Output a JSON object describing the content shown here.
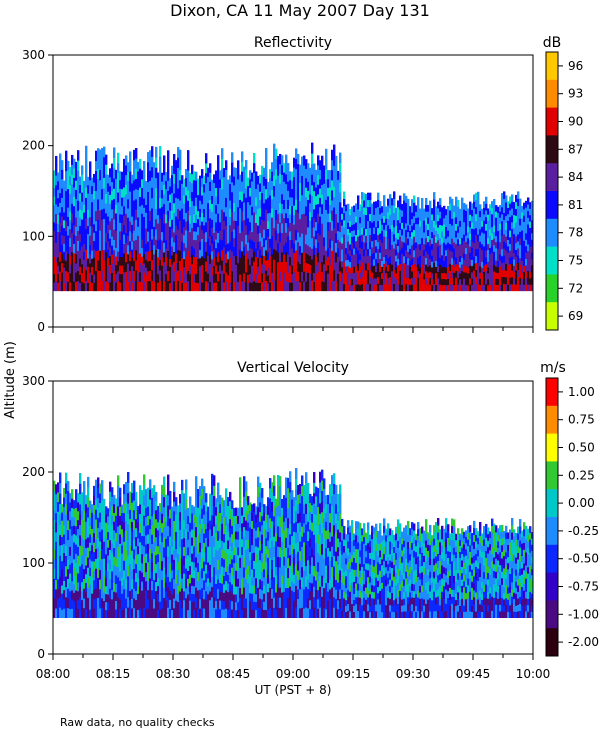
{
  "chart_data": [
    {
      "type": "heatmap",
      "title": "Reflectivity",
      "units": "dB",
      "ylim": [
        0,
        300
      ],
      "yticks": [
        0,
        100,
        200,
        300
      ],
      "colorbar": {
        "labels": [
          "96",
          "93",
          "90",
          "87",
          "84",
          "81",
          "78",
          "75",
          "72",
          "69"
        ],
        "values": [
          96,
          93,
          90,
          87,
          84,
          81,
          78,
          75,
          72,
          69
        ],
        "colors": [
          "#ffc800",
          "#ff8c00",
          "#e00000",
          "#2d0a14",
          "#5a1ea0",
          "#0a0aff",
          "#1e8cff",
          "#00e0c8",
          "#28d228",
          "#c8ff00"
        ]
      },
      "profile": {
        "base_altitude": 40,
        "description_levels_m": [
          120,
          180,
          200
        ]
      }
    },
    {
      "type": "heatmap",
      "title": "Vertical Velocity",
      "units": "m/s",
      "ylim": [
        0,
        300
      ],
      "yticks": [
        0,
        100,
        200,
        300
      ],
      "colorbar": {
        "labels": [
          "1.00",
          "0.75",
          "0.50",
          "0.25",
          "0.00",
          "-0.25",
          "-0.50",
          "-0.75",
          "-1.00",
          "-2.00"
        ],
        "values": [
          1.0,
          0.75,
          0.5,
          0.25,
          0.0,
          -0.25,
          -0.5,
          -0.75,
          -1.0,
          -2.0
        ],
        "colors": [
          "#ff0000",
          "#ff8c00",
          "#ffff00",
          "#32c832",
          "#00c8c8",
          "#1e8cff",
          "#0a28ff",
          "#3200c8",
          "#4b0a82",
          "#2d000f"
        ]
      },
      "profile": {
        "base_altitude": 40,
        "description_levels_m": [
          140,
          180,
          200
        ]
      }
    }
  ],
  "figure": {
    "title": "Dixon, CA 11 May 2007  Day 131",
    "ylabel": "Altitude (m)",
    "xlabel": "UT  (PST + 8)",
    "xlim_hours": [
      8.0,
      10.0
    ],
    "xtick_labels": [
      "08:00",
      "08:15",
      "08:30",
      "08:45",
      "09:00",
      "09:15",
      "09:30",
      "09:45",
      "10:00"
    ],
    "footnote": "Raw data, no quality checks"
  }
}
